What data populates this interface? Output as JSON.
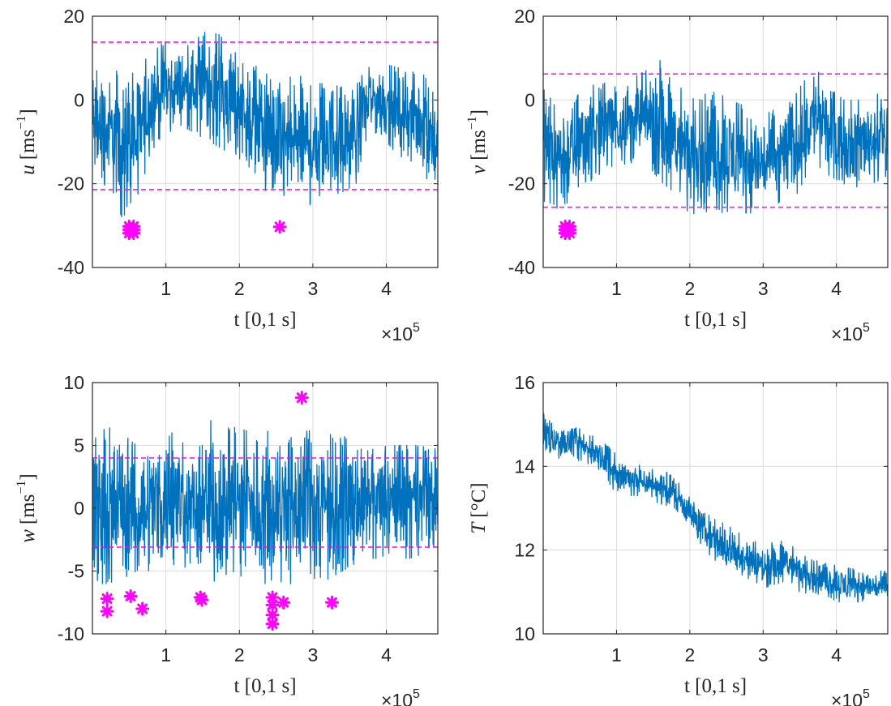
{
  "chart_data": [
    {
      "id": "u",
      "type": "line",
      "ylabel": {
        "var": "u",
        "unit": "[ms",
        "exp": "−1",
        "close": "]"
      },
      "xlabel": "t [0,1 s]",
      "x_exponent": {
        "base": "×10",
        "exp": "5"
      },
      "xlim": [
        0,
        4.7
      ],
      "ylim": [
        -40,
        20
      ],
      "xticks": [
        1,
        2,
        3,
        4
      ],
      "yticks": [
        -40,
        -20,
        0,
        20
      ],
      "ytick_labels": [
        "-40",
        "-20",
        "0",
        "20"
      ],
      "thresholds": [
        13.8,
        -21.4
      ],
      "envelope": [
        {
          "x": 0.0,
          "hi": 9.5,
          "lo": -22
        },
        {
          "x": 0.2,
          "hi": 5,
          "lo": -20
        },
        {
          "x": 0.4,
          "hi": 8,
          "lo": -28
        },
        {
          "x": 0.6,
          "hi": 7,
          "lo": -25
        },
        {
          "x": 0.8,
          "hi": 12,
          "lo": -12
        },
        {
          "x": 1.0,
          "hi": 14,
          "lo": -9
        },
        {
          "x": 1.2,
          "hi": 12,
          "lo": -6
        },
        {
          "x": 1.4,
          "hi": 14,
          "lo": -8
        },
        {
          "x": 1.6,
          "hi": 18.5,
          "lo": -10
        },
        {
          "x": 1.8,
          "hi": 14,
          "lo": -12
        },
        {
          "x": 2.0,
          "hi": 12,
          "lo": -14
        },
        {
          "x": 2.2,
          "hi": 9,
          "lo": -17
        },
        {
          "x": 2.3,
          "hi": 8,
          "lo": -20
        },
        {
          "x": 2.4,
          "hi": 6,
          "lo": -25
        },
        {
          "x": 2.6,
          "hi": 5,
          "lo": -27
        },
        {
          "x": 2.8,
          "hi": 6,
          "lo": -25
        },
        {
          "x": 3.0,
          "hi": 4,
          "lo": -25
        },
        {
          "x": 3.2,
          "hi": 5,
          "lo": -23
        },
        {
          "x": 3.4,
          "hi": 4,
          "lo": -22
        },
        {
          "x": 3.6,
          "hi": 5,
          "lo": -20
        },
        {
          "x": 3.7,
          "hi": 8,
          "lo": -10
        },
        {
          "x": 3.9,
          "hi": 9,
          "lo": -8
        },
        {
          "x": 4.1,
          "hi": 8,
          "lo": -12
        },
        {
          "x": 4.3,
          "hi": 7,
          "lo": -15
        },
        {
          "x": 4.5,
          "hi": 6,
          "lo": -17
        },
        {
          "x": 4.7,
          "hi": 4,
          "lo": -24
        }
      ],
      "outliers": [
        {
          "x": 0.5,
          "y": -30.2
        },
        {
          "x": 0.5,
          "y": -31.0
        },
        {
          "x": 0.5,
          "y": -31.8
        },
        {
          "x": 0.56,
          "y": -30.2
        },
        {
          "x": 0.56,
          "y": -31.0
        },
        {
          "x": 0.56,
          "y": -31.8
        },
        {
          "x": 2.55,
          "y": -30.3
        }
      ]
    },
    {
      "id": "v",
      "type": "line",
      "ylabel": {
        "var": "v",
        "unit": "[ms",
        "exp": "−1",
        "close": "]"
      },
      "xlabel": "t [0,1 s]",
      "x_exponent": {
        "base": "×10",
        "exp": "5"
      },
      "xlim": [
        0,
        4.7
      ],
      "ylim": [
        -40,
        20
      ],
      "xticks": [
        1,
        2,
        3,
        4
      ],
      "yticks": [
        -40,
        -20,
        0,
        20
      ],
      "ytick_labels": [
        "-40",
        "-20",
        "0",
        "20"
      ],
      "thresholds": [
        6.2,
        -25.6
      ],
      "envelope": [
        {
          "x": 0.0,
          "hi": 3,
          "lo": -24
        },
        {
          "x": 0.3,
          "hi": 0,
          "lo": -28
        },
        {
          "x": 0.6,
          "hi": 3,
          "lo": -20
        },
        {
          "x": 0.9,
          "hi": 5,
          "lo": -16
        },
        {
          "x": 1.2,
          "hi": 5,
          "lo": -15
        },
        {
          "x": 1.5,
          "hi": 8,
          "lo": -17
        },
        {
          "x": 1.6,
          "hi": 9.5,
          "lo": -20
        },
        {
          "x": 1.8,
          "hi": 5,
          "lo": -24
        },
        {
          "x": 2.0,
          "hi": 0,
          "lo": -27
        },
        {
          "x": 2.3,
          "hi": 2,
          "lo": -28
        },
        {
          "x": 2.6,
          "hi": 0,
          "lo": -27
        },
        {
          "x": 2.9,
          "hi": -3,
          "lo": -27
        },
        {
          "x": 3.1,
          "hi": -3,
          "lo": -26
        },
        {
          "x": 3.3,
          "hi": 0,
          "lo": -25
        },
        {
          "x": 3.5,
          "hi": 3,
          "lo": -22
        },
        {
          "x": 3.7,
          "hi": 8,
          "lo": -15
        },
        {
          "x": 3.9,
          "hi": 3,
          "lo": -18
        },
        {
          "x": 4.1,
          "hi": 0,
          "lo": -20
        },
        {
          "x": 4.3,
          "hi": 0,
          "lo": -21
        },
        {
          "x": 4.5,
          "hi": 2,
          "lo": -20
        },
        {
          "x": 4.7,
          "hi": 0,
          "lo": -18
        }
      ],
      "outliers": [
        {
          "x": 0.3,
          "y": -30.2
        },
        {
          "x": 0.3,
          "y": -31.0
        },
        {
          "x": 0.3,
          "y": -31.8
        },
        {
          "x": 0.36,
          "y": -30.2
        },
        {
          "x": 0.36,
          "y": -31.0
        },
        {
          "x": 0.36,
          "y": -31.8
        }
      ]
    },
    {
      "id": "w",
      "type": "line",
      "ylabel": {
        "var": "w",
        "unit": "[ms",
        "exp": "−1",
        "close": "]"
      },
      "xlabel": "t [0,1 s]",
      "x_exponent": {
        "base": "×10",
        "exp": "5"
      },
      "xlim": [
        0,
        4.7
      ],
      "ylim": [
        -10,
        10
      ],
      "xticks": [
        1,
        2,
        3,
        4
      ],
      "yticks": [
        -10,
        -5,
        0,
        5,
        10
      ],
      "ytick_labels": [
        "-10",
        "-5",
        "0",
        "5",
        "10"
      ],
      "thresholds": [
        4.0,
        -3.1
      ],
      "envelope": [
        {
          "x": 0.0,
          "hi": 6,
          "lo": -6
        },
        {
          "x": 0.3,
          "hi": 6.5,
          "lo": -6
        },
        {
          "x": 0.6,
          "hi": 5,
          "lo": -5
        },
        {
          "x": 0.9,
          "hi": 6,
          "lo": -5
        },
        {
          "x": 1.2,
          "hi": 6,
          "lo": -5
        },
        {
          "x": 1.4,
          "hi": 4,
          "lo": -4
        },
        {
          "x": 1.6,
          "hi": 7,
          "lo": -6
        },
        {
          "x": 1.9,
          "hi": 6.5,
          "lo": -5
        },
        {
          "x": 2.2,
          "hi": 6,
          "lo": -6
        },
        {
          "x": 2.5,
          "hi": 7,
          "lo": -6
        },
        {
          "x": 2.8,
          "hi": 7,
          "lo": -6
        },
        {
          "x": 3.1,
          "hi": 6,
          "lo": -6
        },
        {
          "x": 3.4,
          "hi": 6,
          "lo": -5
        },
        {
          "x": 3.7,
          "hi": 4.5,
          "lo": -4
        },
        {
          "x": 4.0,
          "hi": 5,
          "lo": -4
        },
        {
          "x": 4.3,
          "hi": 5,
          "lo": -4
        },
        {
          "x": 4.7,
          "hi": 5,
          "lo": -4
        }
      ],
      "outliers": [
        {
          "x": 0.2,
          "y": -7.2
        },
        {
          "x": 0.2,
          "y": -8.2
        },
        {
          "x": 0.52,
          "y": -7.0
        },
        {
          "x": 0.68,
          "y": -8.0
        },
        {
          "x": 1.47,
          "y": -7.1
        },
        {
          "x": 1.49,
          "y": -7.3
        },
        {
          "x": 2.45,
          "y": -7.1
        },
        {
          "x": 2.45,
          "y": -7.7
        },
        {
          "x": 2.45,
          "y": -8.5
        },
        {
          "x": 2.45,
          "y": -9.2
        },
        {
          "x": 2.6,
          "y": -7.5
        },
        {
          "x": 3.26,
          "y": -7.5
        },
        {
          "x": 2.85,
          "y": 8.8
        }
      ]
    },
    {
      "id": "T",
      "type": "line",
      "ylabel": {
        "var": "T",
        "unit": "[°C]",
        "exp": "",
        "close": ""
      },
      "xlabel": "t [0,1 s]",
      "x_exponent": {
        "base": "×10",
        "exp": "5"
      },
      "xlim": [
        0,
        4.7
      ],
      "ylim": [
        10,
        16
      ],
      "xticks": [
        1,
        2,
        3,
        4
      ],
      "yticks": [
        10,
        12,
        14,
        16
      ],
      "ytick_labels": [
        "10",
        "12",
        "14",
        "16"
      ],
      "thresholds": [],
      "envelope": [
        {
          "x": 0.0,
          "hi": 15.4,
          "lo": 14.2
        },
        {
          "x": 0.2,
          "hi": 15.0,
          "lo": 14.2
        },
        {
          "x": 0.5,
          "hi": 14.9,
          "lo": 14.1
        },
        {
          "x": 0.8,
          "hi": 14.6,
          "lo": 13.9
        },
        {
          "x": 1.0,
          "hi": 14.3,
          "lo": 13.3
        },
        {
          "x": 1.3,
          "hi": 14.1,
          "lo": 13.3
        },
        {
          "x": 1.6,
          "hi": 13.9,
          "lo": 13.1
        },
        {
          "x": 1.8,
          "hi": 13.8,
          "lo": 13.0
        },
        {
          "x": 2.0,
          "hi": 13.3,
          "lo": 12.5
        },
        {
          "x": 2.2,
          "hi": 12.9,
          "lo": 12.0
        },
        {
          "x": 2.5,
          "hi": 12.6,
          "lo": 11.5
        },
        {
          "x": 2.8,
          "hi": 12.3,
          "lo": 11.2
        },
        {
          "x": 3.0,
          "hi": 12.1,
          "lo": 11.1
        },
        {
          "x": 3.3,
          "hi": 12.3,
          "lo": 11.2
        },
        {
          "x": 3.5,
          "hi": 11.9,
          "lo": 11.0
        },
        {
          "x": 3.8,
          "hi": 11.7,
          "lo": 10.9
        },
        {
          "x": 4.1,
          "hi": 11.6,
          "lo": 10.7
        },
        {
          "x": 4.4,
          "hi": 11.5,
          "lo": 10.8
        },
        {
          "x": 4.7,
          "hi": 11.5,
          "lo": 10.7
        }
      ],
      "outliers": []
    }
  ],
  "colors": {
    "series": "#0072bd",
    "threshold": "#ff00ff",
    "outlier": "#ff00ff",
    "grid": "#dcdcdc",
    "axis": "#262626"
  }
}
